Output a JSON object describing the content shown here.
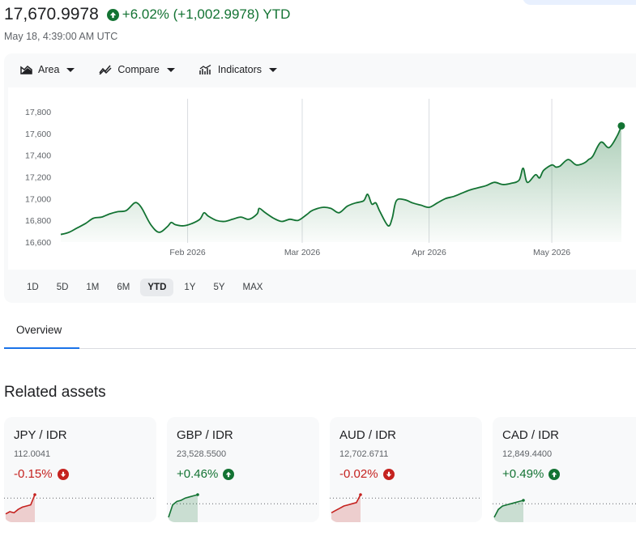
{
  "quote": {
    "price": "17,670.9978",
    "change": "+6.02% (+1,002.9978) YTD",
    "timestamp": "May 18, 4:39:00 AM UTC",
    "accent_up": "#137333",
    "accent_down": "#c5221f"
  },
  "toolbar": {
    "area_label": "Area",
    "compare_label": "Compare",
    "indicators_label": "Indicators"
  },
  "chart_data": {
    "type": "area",
    "y_ticks": [
      "17,800",
      "17,600",
      "17,400",
      "17,200",
      "17,000",
      "16,800",
      "16,600"
    ],
    "y_tick_values": [
      17800,
      17600,
      17400,
      17200,
      17000,
      16800,
      16600
    ],
    "ylim": [
      16600,
      17800
    ],
    "x_ticks": [
      "Feb 2026",
      "Mar 2026",
      "Apr 2026",
      "May 2026"
    ],
    "x_tick_days": [
      31,
      59,
      90,
      120
    ],
    "xlim_days": [
      0,
      138
    ],
    "grid": "vertical",
    "series": [
      {
        "x_days": [
          0,
          2,
          4,
          6,
          8,
          10,
          12,
          14,
          16,
          18,
          19,
          20,
          22,
          24,
          26,
          27,
          28,
          30,
          32,
          34,
          35,
          36,
          38,
          40,
          42,
          44,
          46,
          48,
          48.5,
          50,
          52,
          54,
          56,
          58,
          60,
          61,
          62,
          64,
          66,
          68,
          70,
          72,
          74,
          75,
          76,
          77,
          78,
          80,
          81,
          82,
          84,
          86,
          88,
          90,
          92,
          94,
          96,
          98,
          100,
          102,
          104,
          106,
          108,
          110,
          112,
          113,
          114,
          116,
          117,
          118,
          120,
          121,
          122,
          124,
          126,
          128,
          129,
          130,
          132,
          134,
          136,
          137
        ],
        "values": [
          16670,
          16690,
          16730,
          16770,
          16820,
          16830,
          16860,
          16880,
          16890,
          16960,
          16950,
          16900,
          16760,
          16690,
          16740,
          16780,
          16760,
          16750,
          16770,
          16810,
          16870,
          16840,
          16800,
          16790,
          16810,
          16830,
          16810,
          16860,
          16910,
          16870,
          16820,
          16790,
          16810,
          16800,
          16850,
          16880,
          16900,
          16920,
          16910,
          16870,
          16930,
          16960,
          16980,
          17040,
          16950,
          16960,
          16880,
          16750,
          16820,
          16980,
          16990,
          16960,
          16940,
          16920,
          16960,
          17000,
          17020,
          17050,
          17080,
          17100,
          17120,
          17150,
          17130,
          17140,
          17170,
          17280,
          17150,
          17220,
          17190,
          17260,
          17310,
          17290,
          17300,
          17360,
          17310,
          17330,
          17360,
          17390,
          17520,
          17470,
          17580,
          17670
        ]
      }
    ]
  },
  "ranges": [
    "1D",
    "5D",
    "1M",
    "6M",
    "YTD",
    "1Y",
    "5Y",
    "MAX"
  ],
  "active_range": "YTD",
  "tabs": [
    {
      "label": "Overview"
    }
  ],
  "related": {
    "title": "Related assets",
    "assets": [
      {
        "name": "JPY / IDR",
        "value": "112.0041",
        "change": "-0.15%",
        "direction": "down",
        "spark": [
          0.15,
          0.25,
          0.2,
          0.35,
          0.45,
          0.5,
          0.55,
          1.0
        ]
      },
      {
        "name": "GBP / IDR",
        "value": "23,528.5500",
        "change": "+0.46%",
        "direction": "up",
        "spark": [
          0.0,
          0.55,
          0.7,
          0.75,
          0.85,
          0.9,
          0.95,
          1.0
        ]
      },
      {
        "name": "AUD / IDR",
        "value": "12,702.6711",
        "change": "-0.02%",
        "direction": "down",
        "spark": [
          0.2,
          0.3,
          0.4,
          0.5,
          0.55,
          0.6,
          0.65,
          1.0
        ]
      },
      {
        "name": "CAD / IDR",
        "value": "12,849.4400",
        "change": "+0.49%",
        "direction": "up",
        "spark": [
          0.0,
          0.35,
          0.5,
          0.55,
          0.6,
          0.65,
          0.7,
          0.75
        ]
      }
    ]
  }
}
